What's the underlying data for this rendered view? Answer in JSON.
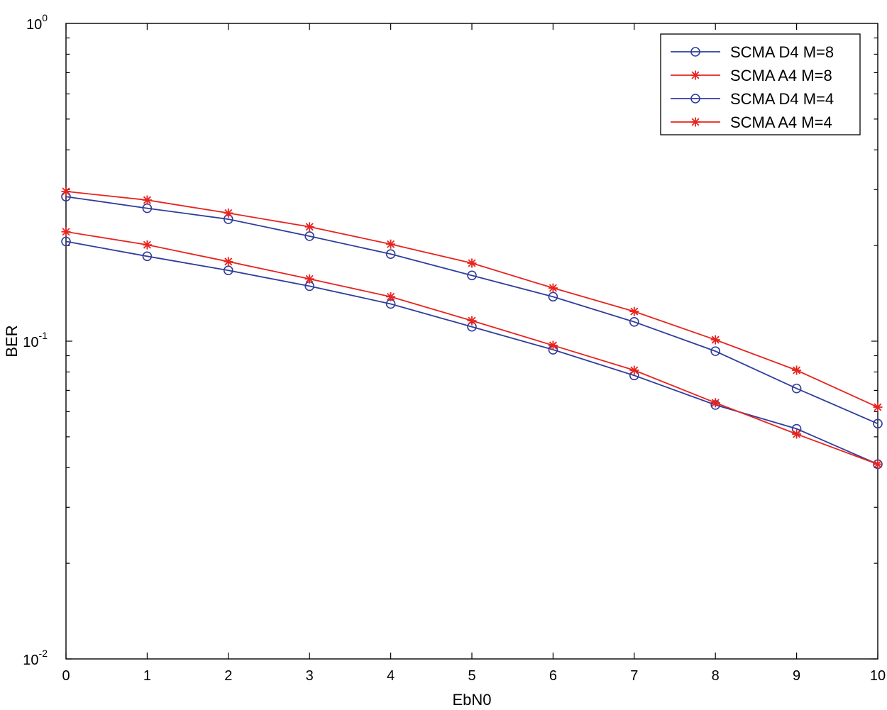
{
  "chart_data": {
    "type": "line",
    "title": "",
    "xlabel": "EbN0",
    "ylabel": "BER",
    "x": [
      0,
      1,
      2,
      3,
      4,
      5,
      6,
      7,
      8,
      9,
      10
    ],
    "xlim": [
      0,
      10
    ],
    "ylim": [
      0.01,
      1
    ],
    "yscale": "log",
    "x_ticks": [
      "0",
      "1",
      "2",
      "3",
      "4",
      "5",
      "6",
      "7",
      "8",
      "9",
      "10"
    ],
    "y_ticks": [
      {
        "base": "10",
        "exp": "0"
      },
      {
        "base": "10",
        "exp": "-1"
      },
      {
        "base": "10",
        "exp": "-2"
      }
    ],
    "grid": false,
    "legend_position": "top-right",
    "series": [
      {
        "name": "SCMA D4 M=8",
        "color": "#2f3d9c",
        "marker": "circle",
        "values": [
          0.285,
          0.262,
          0.242,
          0.214,
          0.188,
          0.161,
          0.138,
          0.115,
          0.093,
          0.071,
          0.055
        ]
      },
      {
        "name": "SCMA A4 M=8",
        "color": "#e8231e",
        "marker": "asterisk",
        "values": [
          0.296,
          0.278,
          0.253,
          0.229,
          0.202,
          0.176,
          0.147,
          0.124,
          0.101,
          0.081,
          0.062
        ]
      },
      {
        "name": "SCMA D4 M=4",
        "color": "#2f3d9c",
        "marker": "circle",
        "values": [
          0.206,
          0.185,
          0.167,
          0.149,
          0.131,
          0.111,
          0.094,
          0.078,
          0.063,
          0.053,
          0.041
        ]
      },
      {
        "name": "SCMA A4 M=4",
        "color": "#e8231e",
        "marker": "asterisk",
        "values": [
          0.221,
          0.201,
          0.178,
          0.157,
          0.138,
          0.116,
          0.097,
          0.081,
          0.064,
          0.051,
          0.041
        ]
      }
    ]
  }
}
